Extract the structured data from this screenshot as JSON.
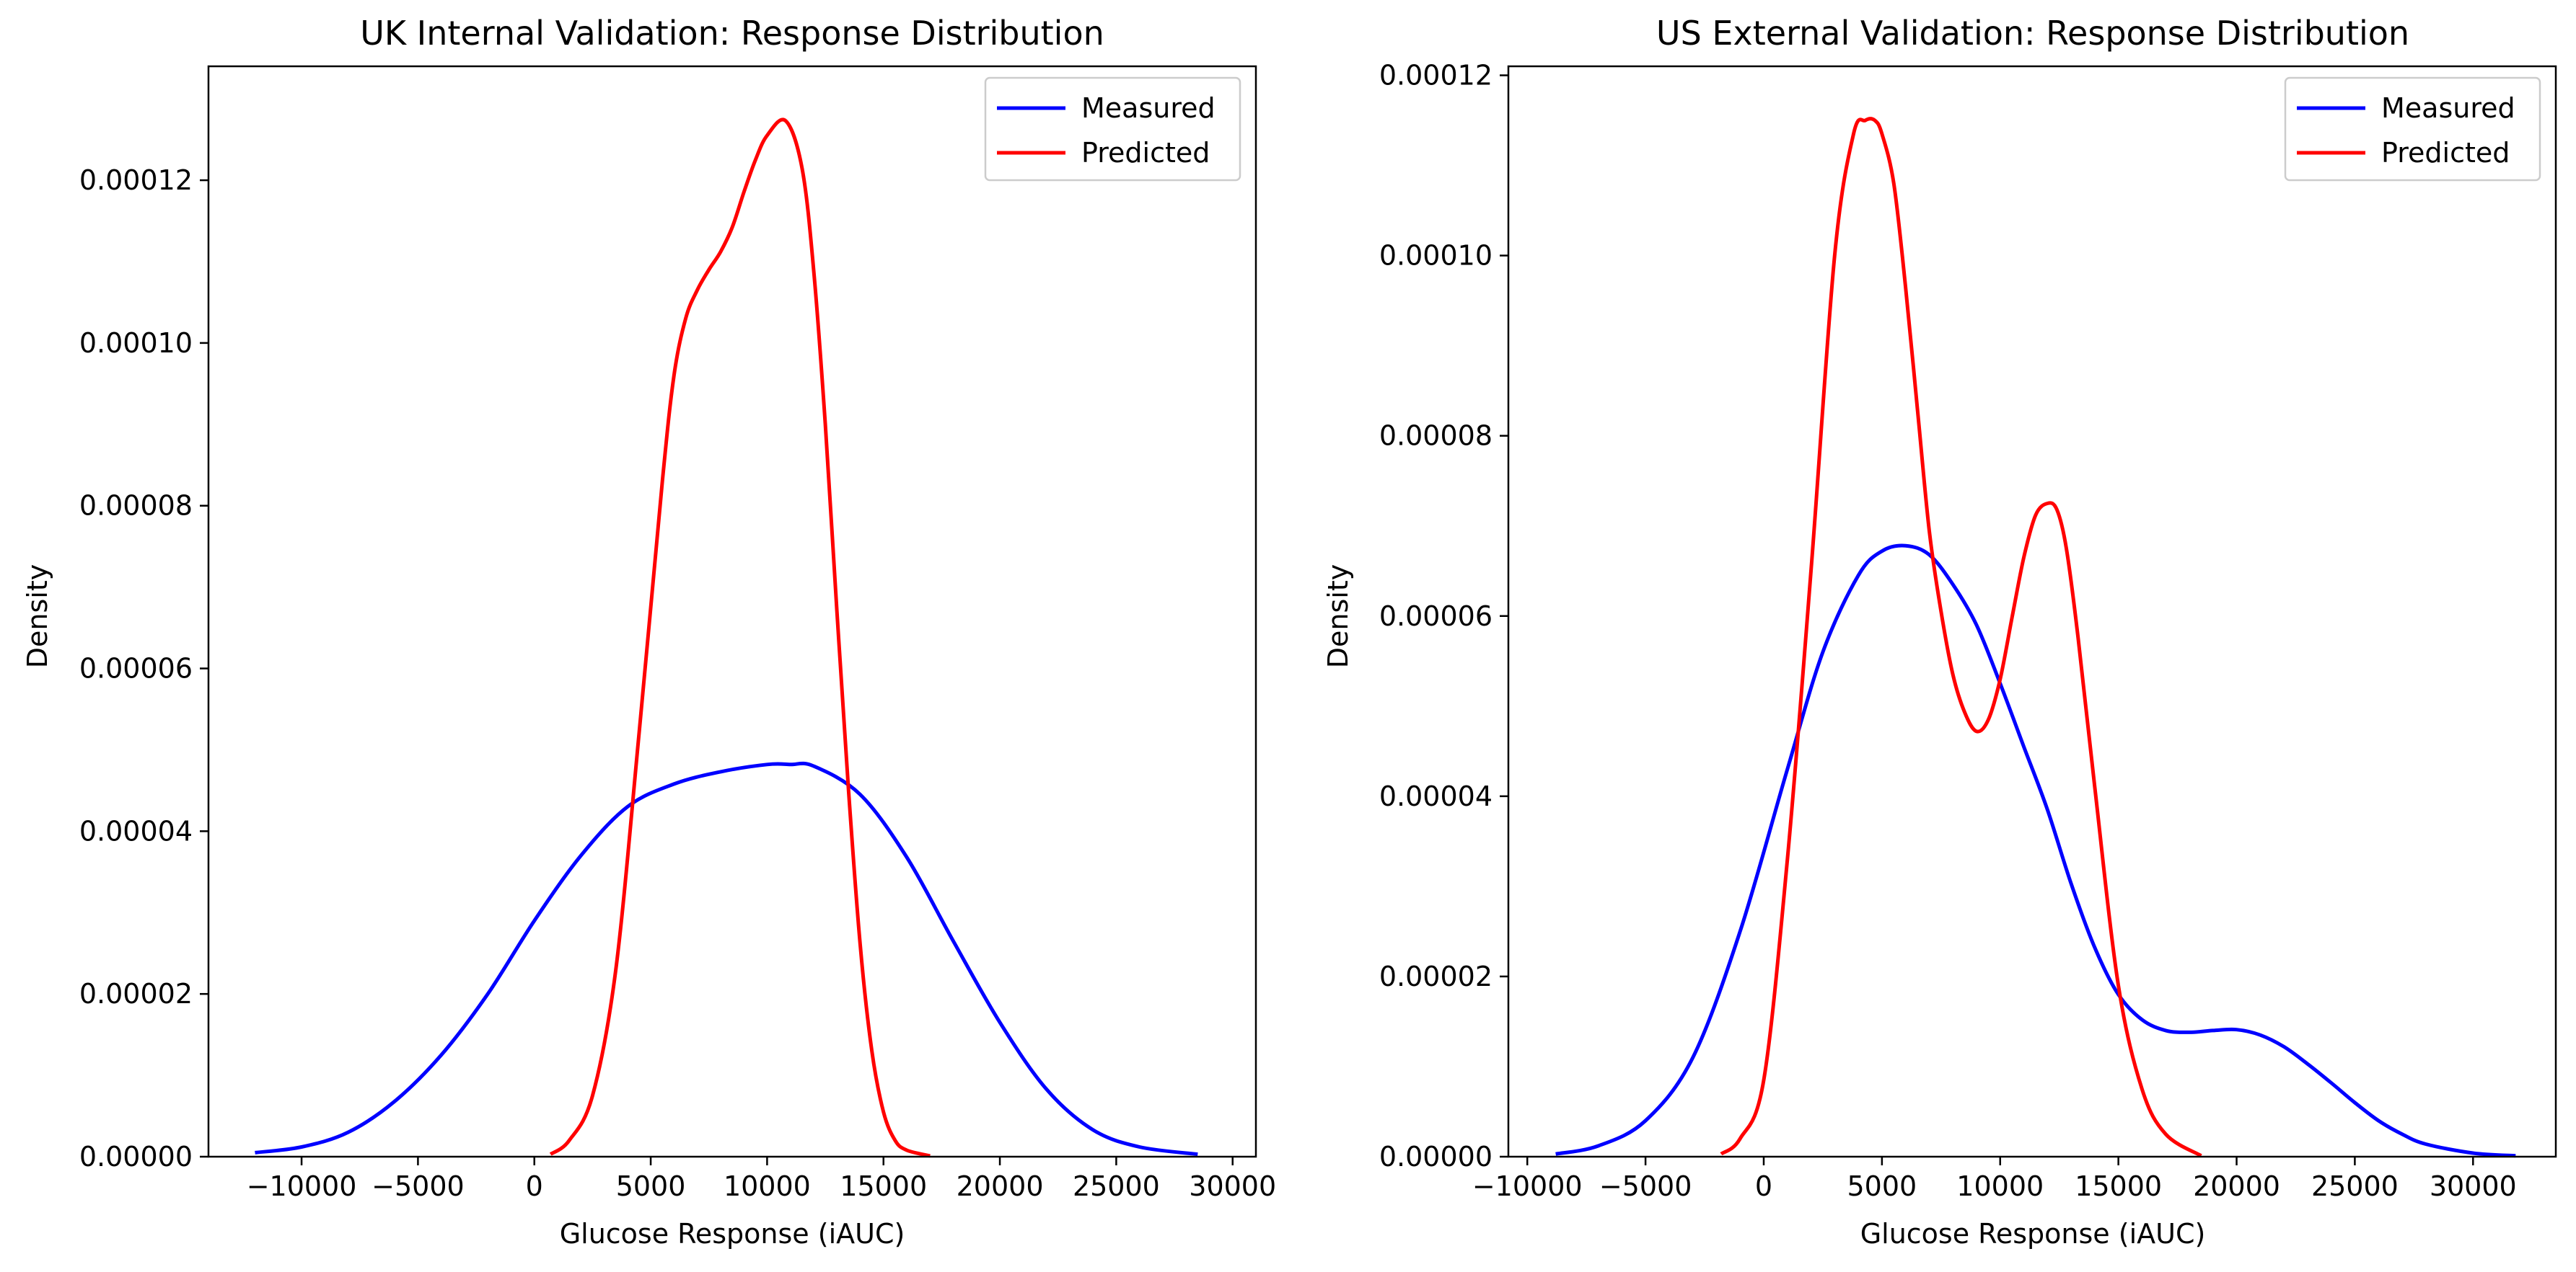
{
  "chart_data": [
    {
      "type": "line",
      "title": "UK Internal Validation: Response Distribution",
      "xlabel": "Glucose Response (iAUC)",
      "ylabel": "Density",
      "xlim": [
        -14000,
        31000
      ],
      "ylim": [
        0,
        0.000134
      ],
      "xticks": [
        -10000,
        -5000,
        0,
        5000,
        10000,
        15000,
        20000,
        25000,
        30000
      ],
      "xtick_labels": [
        "−10000",
        "−5000",
        "0",
        "5000",
        "10000",
        "15000",
        "20000",
        "25000",
        "30000"
      ],
      "yticks": [
        0,
        2e-05,
        4e-05,
        6e-05,
        8e-05,
        0.0001,
        0.00012
      ],
      "ytick_labels": [
        "0.00000",
        "0.00002",
        "0.00004",
        "0.00006",
        "0.00008",
        "0.00010",
        "0.00012"
      ],
      "legend": {
        "position": "top-right",
        "entries": [
          "Measured",
          "Predicted"
        ]
      },
      "grid": false,
      "series": [
        {
          "name": "Measured",
          "color": "#0000ff",
          "x": [
            -12000,
            -10000,
            -8000,
            -6000,
            -4000,
            -2000,
            0,
            2000,
            4000,
            6000,
            8000,
            10000,
            11000,
            12000,
            14000,
            16000,
            18000,
            20000,
            22000,
            24000,
            26000,
            28500
          ],
          "y": [
            5e-07,
            1.2e-06,
            3e-06,
            6.8e-06,
            1.25e-05,
            2e-05,
            2.9e-05,
            3.7e-05,
            4.3e-05,
            4.58e-05,
            4.73e-05,
            4.82e-05,
            4.82e-05,
            4.8e-05,
            4.45e-05,
            3.68e-05,
            2.65e-05,
            1.65e-05,
            8.3e-06,
            3.3e-06,
            1.2e-06,
            3e-07
          ]
        },
        {
          "name": "Predicted",
          "color": "#ff0000",
          "x": [
            700,
            1500,
            2500,
            3500,
            4500,
            5500,
            6000,
            6500,
            7000,
            7500,
            8000,
            8500,
            9000,
            9500,
            10000,
            10800,
            11500,
            12000,
            12500,
            13000,
            13500,
            14000,
            14500,
            15000,
            15500,
            16000,
            17000
          ],
          "y": [
            3e-07,
            2e-06,
            7.5e-06,
            2.3e-05,
            5.2e-05,
            8.3e-05,
            9.6e-05,
            0.000103,
            0.0001065,
            0.000109,
            0.0001112,
            0.0001142,
            0.0001185,
            0.0001225,
            0.0001255,
            0.0001273,
            0.0001215,
            0.000109,
            9e-05,
            6.7e-05,
            4.5e-05,
            2.6e-05,
            1.3e-05,
            5.5e-06,
            2e-06,
            8e-07,
            1e-07
          ]
        }
      ]
    },
    {
      "type": "line",
      "title": "US External Validation: Response Distribution",
      "xlabel": "Glucose Response (iAUC)",
      "ylabel": "Density",
      "xlim": [
        -10800,
        33500
      ],
      "ylim": [
        0,
        0.000121
      ],
      "xticks": [
        -10000,
        -5000,
        0,
        5000,
        10000,
        15000,
        20000,
        25000,
        30000
      ],
      "xtick_labels": [
        "−10000",
        "−5000",
        "0",
        "5000",
        "10000",
        "15000",
        "20000",
        "25000",
        "30000"
      ],
      "yticks": [
        0,
        2e-05,
        4e-05,
        6e-05,
        8e-05,
        0.0001,
        0.00012
      ],
      "ytick_labels": [
        "0.00000",
        "0.00002",
        "0.00004",
        "0.00006",
        "0.00008",
        "0.00010",
        "0.00012"
      ],
      "legend": {
        "position": "top-right",
        "entries": [
          "Measured",
          "Predicted"
        ]
      },
      "grid": false,
      "series": [
        {
          "name": "Measured",
          "color": "#0000ff",
          "x": [
            -8800,
            -7000,
            -5000,
            -3000,
            -1000,
            1000,
            2500,
            4000,
            5000,
            6000,
            7000,
            8000,
            9000,
            10000,
            11000,
            12000,
            13000,
            14000,
            15000,
            16000,
            17000,
            18000,
            19000,
            20000,
            21000,
            22000,
            23000,
            24000,
            25000,
            26000,
            27000,
            28000,
            30000,
            31800
          ],
          "y": [
            3e-07,
            1.2e-06,
            4e-06,
            1.1e-05,
            2.5e-05,
            4.3e-05,
            5.6e-05,
            6.45e-05,
            6.72e-05,
            6.78e-05,
            6.68e-05,
            6.35e-05,
            5.9e-05,
            5.25e-05,
            4.55e-05,
            3.85e-05,
            3.03e-05,
            2.32e-05,
            1.8e-05,
            1.52e-05,
            1.4e-05,
            1.38e-05,
            1.4e-05,
            1.41e-05,
            1.35e-05,
            1.22e-05,
            1.03e-05,
            8.2e-06,
            6e-06,
            4e-06,
            2.5e-06,
            1.4e-06,
            4e-07,
            1e-07
          ]
        },
        {
          "name": "Predicted",
          "color": "#ff0000",
          "x": [
            -1800,
            -1000,
            0,
            1000,
            2000,
            3000,
            3800,
            4300,
            4700,
            5000,
            5500,
            6000,
            6500,
            7000,
            7500,
            8000,
            8500,
            9000,
            9500,
            10000,
            10500,
            11000,
            11500,
            12000,
            12400,
            12800,
            13300,
            14000,
            15000,
            16000,
            17000,
            18500
          ],
          "y": [
            3e-07,
            2e-06,
            8.5e-06,
            3.3e-05,
            6.5e-05,
            0.0001,
            0.0001135,
            0.000115,
            0.000115,
            0.0001135,
            0.000108,
            9.65e-05,
            8.3e-05,
            6.95e-05,
            6.05e-05,
            5.35e-05,
            4.93e-05,
            4.72e-05,
            4.85e-05,
            5.3e-05,
            5.98e-05,
            6.65e-05,
            7.12e-05,
            7.25e-05,
            7.18e-05,
            6.75e-05,
            5.75e-05,
            4.1e-05,
            1.9e-05,
            7.5e-06,
            2.5e-06,
            1e-07
          ]
        }
      ]
    }
  ]
}
